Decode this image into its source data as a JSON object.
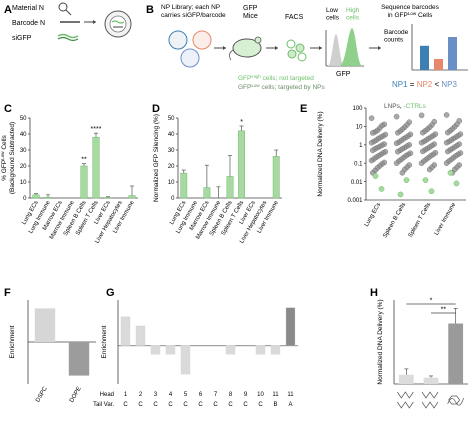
{
  "colors": {
    "green": "#6cbf6a",
    "light_green": "#a8d9a2",
    "gray_dark": "#8a8a8a",
    "gray_mid": "#b5b5b5",
    "gray_light": "#dadada",
    "np1": "#3e7fb3",
    "np2": "#e8876b",
    "np3": "#6a8fc7",
    "text": "#222222"
  },
  "panel_a": {
    "letter": "A",
    "material_label": "Material N",
    "barcode_label": "Barcode N",
    "sigfp_label": "siGFP"
  },
  "panel_b": {
    "letter": "B",
    "np_library_label": "NP Library; each NP\ncarries siGFP/barcode",
    "gfp_mice_label": "GFP\nMice",
    "facs_label": "FACS",
    "low_cells_label": "Low\ncells",
    "high_cells_label": "High\ncells",
    "gfp_axis_label": "GFP",
    "sequence_label": "Sequence barcodes\nin GFP^Low Cells",
    "barcode_counts_label": "Barcode\ncounts",
    "gfp_high_note": "GFP^High cells; not targeted",
    "gfp_low_note": "GFP^Low cells; targeted by NPs",
    "np_compare": [
      "NP1",
      " = ",
      "NP2",
      " < ",
      "NP3"
    ],
    "bar_counts": [
      0.55,
      0.25,
      0.75
    ]
  },
  "panel_c": {
    "letter": "C",
    "ylabel": "% GFP^Low Cells\n(Background Subtracted)"
  },
  "panel_d": {
    "letter": "D",
    "ylabel": "Normalized GFP Silencing (%)"
  },
  "panel_e": {
    "letter": "E",
    "ylabel": "Normalized DNA Delivery (%)",
    "legend_lnps": "LNPs",
    "legend_ctrls": "-CTRLs"
  },
  "panel_f": {
    "letter": "F",
    "ylabel": "Enrichment"
  },
  "panel_g": {
    "letter": "G",
    "ylabel": "Enrichment",
    "head_label": "Head",
    "tail_label": "Tail Var.",
    "heads": [
      "1",
      "2",
      "3",
      "4",
      "5",
      "6",
      "7",
      "8",
      "9",
      "10",
      "11",
      "11"
    ],
    "tails": [
      "C",
      "C",
      "C",
      "C",
      "C",
      "C",
      "C",
      "C",
      "C",
      "C",
      "B",
      "A"
    ]
  },
  "panel_h": {
    "letter": "H",
    "ylabel": "Normalized DNA Delivery (%)"
  },
  "chart_data": [
    {
      "id": "C",
      "type": "bar",
      "ylabel": "% GFP^Low Cells\n(Background Subtracted)",
      "ylim": [
        0,
        50
      ],
      "yticks": [
        0,
        10,
        20,
        30,
        40,
        50
      ],
      "categories": [
        "Lung ECs",
        "Lung Immune",
        "Marrow ECs",
        "Marrow Immune",
        "Spleen B Cells",
        "Spleen T Cells",
        "Liver ECs",
        "Liver Hepatocytes",
        "Liver Immune"
      ],
      "values": [
        2,
        0.5,
        0,
        0,
        20,
        38,
        0.3,
        0,
        1.5
      ],
      "errors": [
        0.8,
        1.5,
        0,
        0,
        1.5,
        2.5,
        0.5,
        0,
        6
      ],
      "significance": [
        "",
        "",
        "",
        "",
        "**",
        "****",
        "",
        "",
        ""
      ]
    },
    {
      "id": "D",
      "type": "bar",
      "ylabel": "Normalized GFP Silencing (%)",
      "ylim": [
        0,
        50
      ],
      "yticks": [
        0,
        10,
        20,
        30,
        40,
        50
      ],
      "categories": [
        "Lung ECs",
        "Lung Immune",
        "Marrow ECs",
        "Marrow Immune",
        "Spleen B Cells",
        "Spleen T Cells",
        "Liver ECs",
        "Liver Hepatocytes",
        "Liver Immune"
      ],
      "values": [
        15.5,
        0,
        6.5,
        0,
        13.5,
        42,
        0,
        0,
        26
      ],
      "errors": [
        2,
        0,
        14,
        7,
        13,
        3,
        0,
        0,
        4
      ],
      "significance": [
        "",
        "",
        "",
        "",
        "",
        "*",
        "",
        "",
        ""
      ]
    },
    {
      "id": "E",
      "type": "scatter",
      "ylabel": "Normalized DNA Delivery (%)",
      "yscale": "log",
      "ylim": [
        0.001,
        100
      ],
      "yticks": [
        0.001,
        0.01,
        0.1,
        1,
        10,
        100
      ],
      "ytick_labels": [
        "0.001",
        "0.01",
        "0.1",
        "1",
        "10",
        "100"
      ],
      "categories": [
        "Lung ECs",
        "Spleen B Cells",
        "Spleen T Cells",
        "Liver Immune"
      ],
      "series": [
        {
          "name": "LNPs",
          "values": [
            [
              28,
              13,
              11,
              8,
              6,
              5,
              4.4,
              3.6,
              3,
              2.6,
              2.2,
              1.8,
              1.5,
              1.3,
              1.1,
              0.95,
              0.8,
              0.7,
              0.6,
              0.5,
              0.42,
              0.36,
              0.3,
              0.25,
              0.21,
              0.17,
              0.14,
              0.11,
              0.09,
              0.07,
              0.055,
              0.04,
              0.03
            ],
            [
              34,
              17,
              12,
              9,
              7,
              5.5,
              4.5,
              3.7,
              3,
              2.5,
              2.1,
              1.7,
              1.4,
              1.2,
              1,
              0.85,
              0.7,
              0.6,
              0.5,
              0.42,
              0.35,
              0.3,
              0.25,
              0.2,
              0.16,
              0.13,
              0.1,
              0.08,
              0.06,
              0.045,
              0.03
            ],
            [
              40,
              18,
              12,
              9,
              7,
              5.6,
              4.6,
              3.8,
              3.1,
              2.6,
              2.2,
              1.8,
              1.5,
              1.3,
              1.1,
              0.9,
              0.75,
              0.63,
              0.53,
              0.44,
              0.37,
              0.3,
              0.25,
              0.2,
              0.16,
              0.13,
              0.1,
              0.08,
              0.06,
              0.045
            ],
            [
              42,
              20,
              13,
              9.5,
              7.2,
              5.7,
              4.6,
              3.8,
              3.1,
              2.6,
              2.2,
              1.8,
              1.5,
              1.3,
              1.1,
              0.9,
              0.75,
              0.62,
              0.52,
              0.43,
              0.36,
              0.3,
              0.25,
              0.2,
              0.16,
              0.13,
              0.1,
              0.08,
              0.06,
              0.045,
              0.03
            ]
          ]
        },
        {
          "name": "-CTRLs",
          "values": [
            [
              0.02,
              0.004
            ],
            [
              0.002,
              0.012
            ],
            [
              0.012,
              0.003
            ],
            [
              0.03,
              0.008
            ]
          ]
        }
      ]
    },
    {
      "id": "F",
      "type": "bar",
      "ylabel": "Enrichment",
      "ylim": [
        -2,
        2
      ],
      "categories": [
        "DSPC",
        "DOPE"
      ],
      "values": [
        1.6,
        -1.6
      ],
      "colors": [
        "#d6d6d6",
        "#9c9c9c"
      ]
    },
    {
      "id": "G",
      "type": "bar",
      "ylabel": "Enrichment",
      "ylim": [
        -5,
        6
      ],
      "categories": [
        "1",
        "2",
        "3",
        "4",
        "5",
        "6",
        "7",
        "8",
        "9",
        "10",
        "11",
        "11"
      ],
      "values": [
        3.8,
        2.6,
        -1.1,
        -1.1,
        -3.7,
        0,
        0,
        -1.1,
        0,
        -1.1,
        -1.1,
        5
      ],
      "colors": [
        "#dadada",
        "#dadada",
        "#dadada",
        "#dadada",
        "#dadada",
        "#dadada",
        "#dadada",
        "#dadada",
        "#dadada",
        "#dadada",
        "#dadada",
        "#8a8a8a"
      ]
    },
    {
      "id": "H",
      "type": "bar",
      "ylabel": "Normalized DNA Delivery (%)",
      "ylim": [
        0,
        5
      ],
      "categories": [
        "",
        "",
        ""
      ],
      "values": [
        0.55,
        0.38,
        3.6
      ],
      "errors": [
        0.35,
        0.1,
        0.9
      ],
      "colors": [
        "#dcdcdc",
        "#dcdcdc",
        "#9a9a9a"
      ],
      "significance": [
        {
          "from": 1,
          "to": 3,
          "label": "*"
        },
        {
          "from": 2,
          "to": 3,
          "label": "**"
        }
      ]
    }
  ]
}
